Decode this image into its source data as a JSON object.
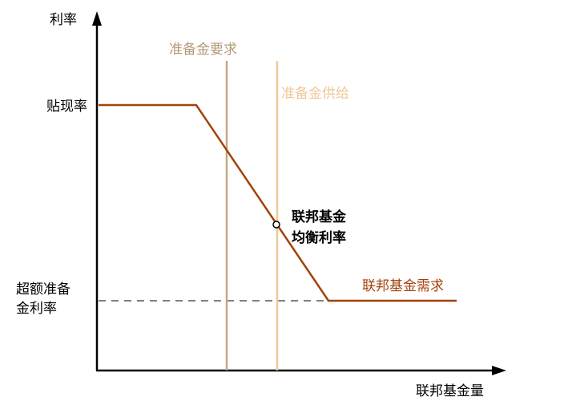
{
  "axes": {
    "y_label": "利率",
    "x_label": "联邦基金量"
  },
  "y_labels": {
    "discount_rate": "贴现率",
    "ioer_line1": "超额准备",
    "ioer_line2": "金利率"
  },
  "curves": {
    "reserve_demand": "准备金要求",
    "reserve_supply": "准备金供给",
    "fed_funds_demand": "联邦基金需求"
  },
  "equilibrium": {
    "line1": "联邦基金",
    "line2": "均衡利率"
  },
  "colors": {
    "demand": "#a3410b",
    "reserve_demand": "#c4a882",
    "reserve_supply": "#f2c898",
    "axis": "#000000",
    "dashed": "#808080"
  }
}
